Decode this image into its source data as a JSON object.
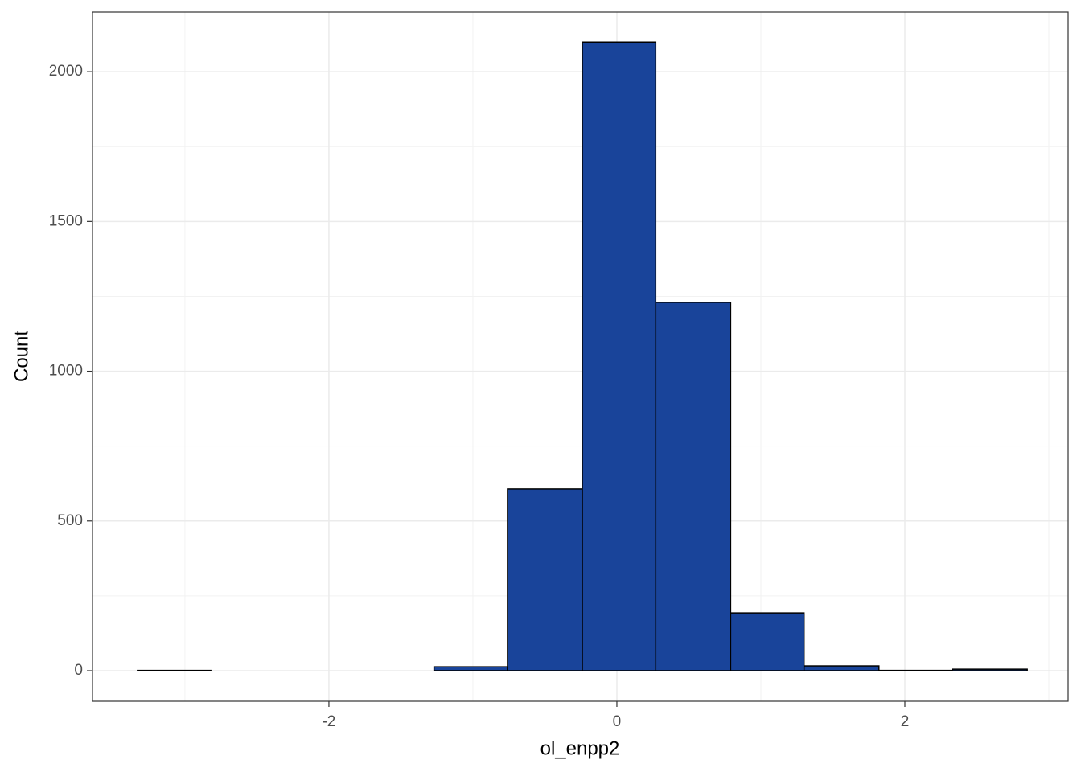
{
  "chart_data": {
    "type": "histogram",
    "xlabel": "ol_enpp2",
    "ylabel": "Count",
    "bins": [
      -3.33,
      -2.82,
      -2.3,
      -1.79,
      -1.27,
      -0.76,
      -0.24,
      0.27,
      0.79,
      1.3,
      1.82,
      2.33,
      2.85
    ],
    "values": [
      1,
      0,
      0,
      0,
      13,
      607,
      2099,
      1230,
      193,
      16,
      1,
      5
    ],
    "color": "#19449a",
    "edgecolor": "#000000",
    "xlim": [
      -3.642,
      3.134
    ],
    "ylim": [
      -102,
      2199
    ],
    "xticks": [
      -2,
      0,
      2
    ],
    "yticks": [
      0,
      500,
      1000,
      1500,
      2000
    ],
    "xminor": [
      -3,
      -1,
      1,
      3
    ],
    "yminor": [
      250,
      750,
      1250,
      1750
    ],
    "grid": true
  }
}
